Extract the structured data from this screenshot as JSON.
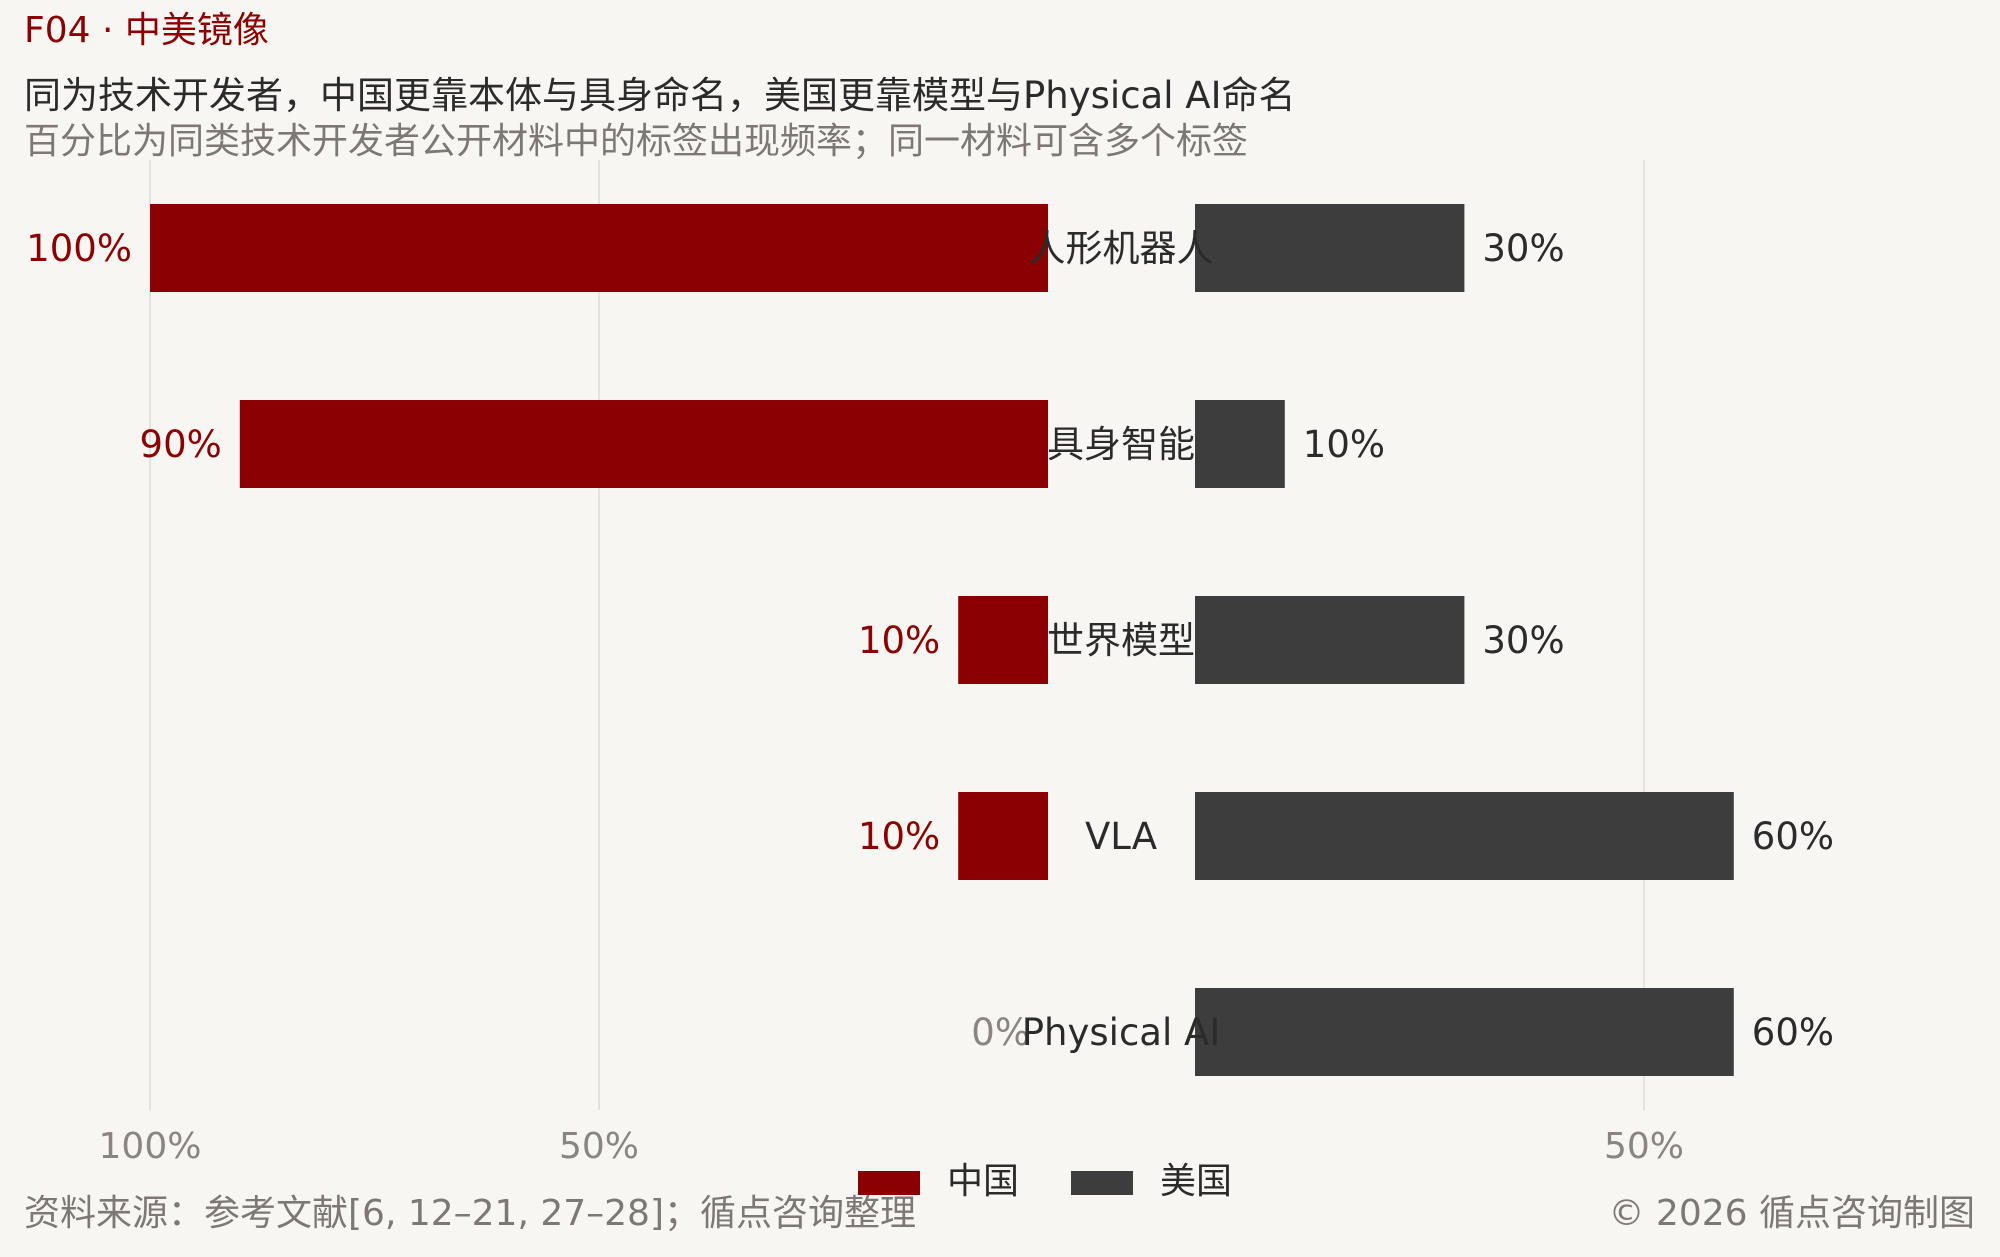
{
  "header": {
    "tag": "F04 · 中美镜像",
    "title": "同为技术开发者，中国更靠本体与具身命名，美国更靠模型与Physical AI命名",
    "subtitle": "百分比为同类技术开发者公开材料中的标签出现频率；同一材料可含多个标签"
  },
  "footer": {
    "source": "资料来源：参考文献[6, 12–21, 27–28]；循点咨询整理",
    "copyright": "© 2026 循点咨询制图"
  },
  "colors": {
    "china": "#8b0000",
    "us": "#3d3d3d",
    "background": "#f8f6f2",
    "grid": "#dedbd6",
    "zero_label": "#8a8580"
  },
  "chart_data": {
    "type": "bar",
    "orientation": "horizontal-mirrored",
    "categories": [
      "人形机器人",
      "具身智能",
      "世界模型",
      "VLA",
      "Physical AI"
    ],
    "series": [
      {
        "name": "中国",
        "values": [
          100,
          90,
          10,
          10,
          0
        ],
        "labels": [
          "100%",
          "90%",
          "10%",
          "10%",
          "0%"
        ]
      },
      {
        "name": "美国",
        "values": [
          30,
          10,
          30,
          60,
          60
        ],
        "labels": [
          "30%",
          "10%",
          "30%",
          "60%",
          "60%"
        ]
      }
    ],
    "left_axis": {
      "ticks": [
        "100%",
        "50%"
      ],
      "tick_values": [
        100,
        50
      ],
      "range": [
        0,
        100
      ]
    },
    "right_axis": {
      "ticks": [
        "50%"
      ],
      "tick_values": [
        50
      ],
      "range": [
        0,
        100
      ]
    },
    "legend": {
      "position": "bottom-center",
      "items": [
        "中国",
        "美国"
      ]
    },
    "grid": true
  }
}
